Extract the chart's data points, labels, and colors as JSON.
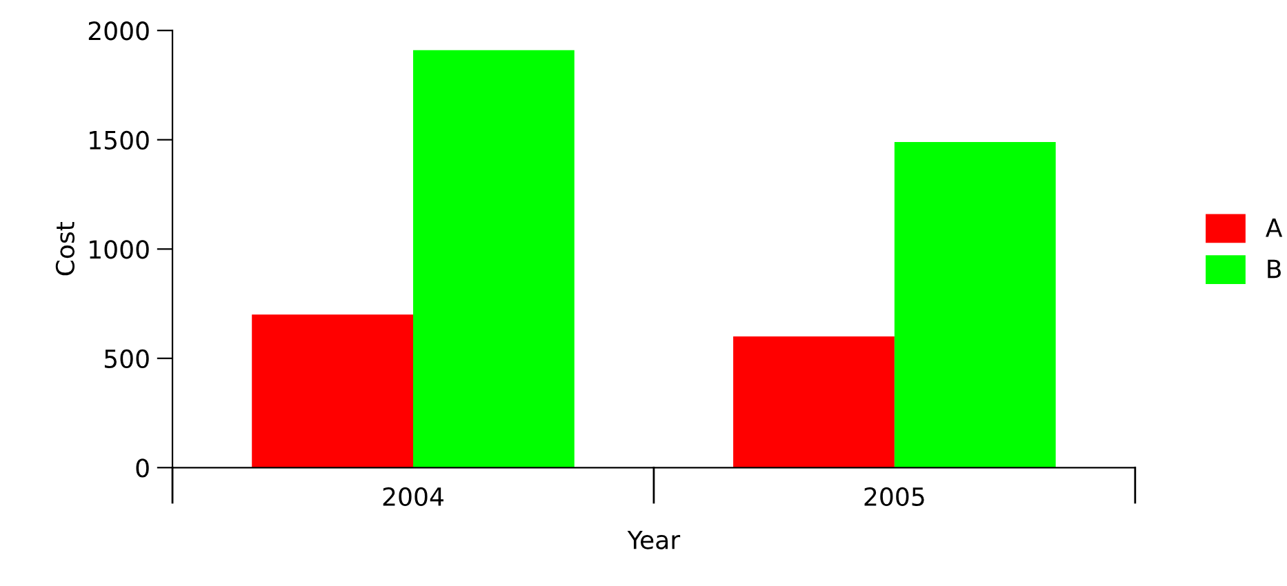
{
  "chart_data": {
    "type": "bar",
    "xlabel": "Year",
    "ylabel": "Cost",
    "categories": [
      "2004",
      "2005"
    ],
    "series": [
      {
        "name": "A",
        "color": "#ff0000",
        "values": [
          700,
          600
        ]
      },
      {
        "name": "B",
        "color": "#00ff00",
        "values": [
          1910,
          1490
        ]
      }
    ],
    "ylim": [
      0,
      2000
    ],
    "yticks": [
      0,
      500,
      1000,
      1500,
      2000
    ],
    "grid": false,
    "legend": "right"
  }
}
